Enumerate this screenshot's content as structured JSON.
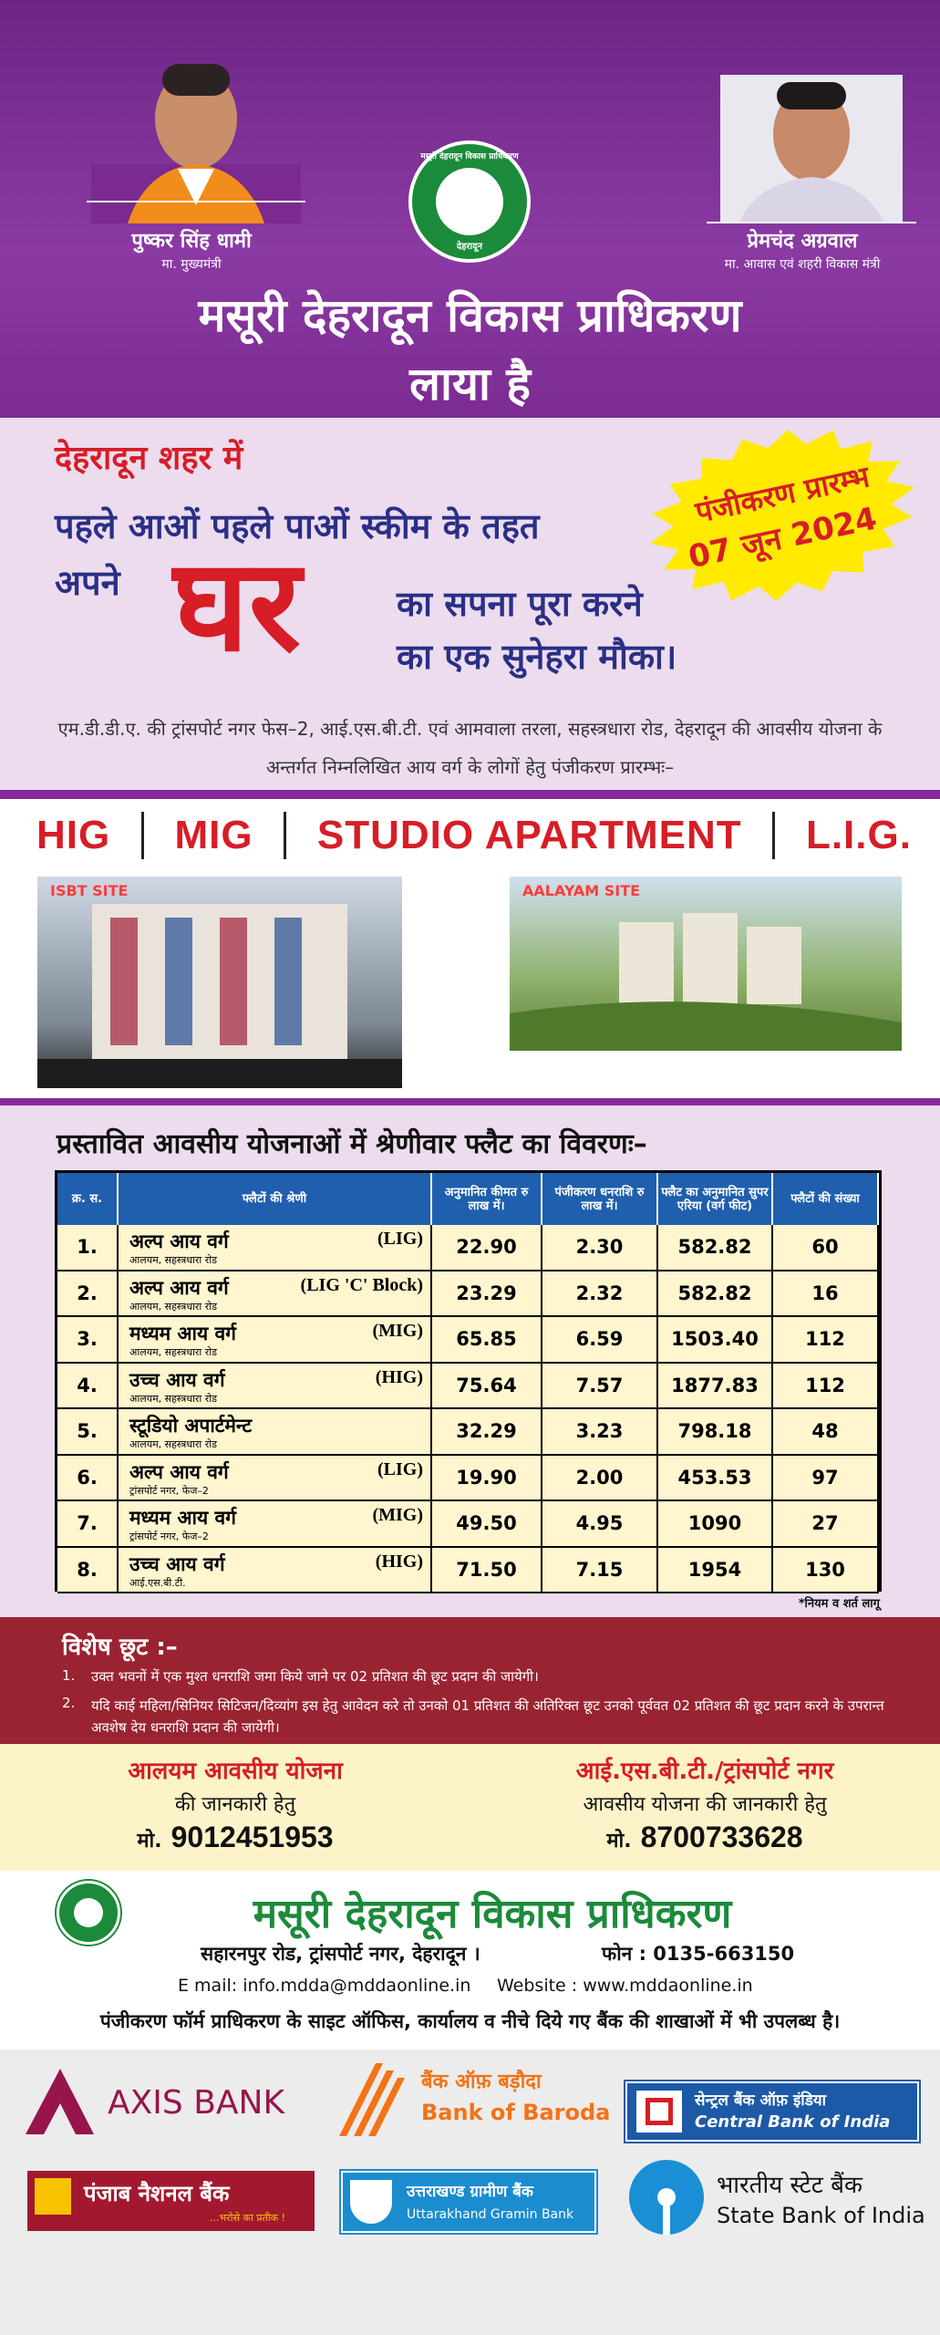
{
  "header": {
    "leaders": [
      {
        "name": "पुष्कर सिंह धामी",
        "role": "मा. मुख्यमंत्री"
      },
      {
        "name": "प्रेमचंद अग्रवाल",
        "role": "मा. आवास एवं शहरी विकास मंत्री"
      }
    ],
    "logo": {
      "top": "मसूरी देहरादून विकास प्राधिकरण",
      "bottom": "देहरादून"
    },
    "title_lines": [
      "मसूरी देहरादून विकास प्राधिकरण",
      "लाया है"
    ]
  },
  "offer": {
    "city": "देहरादून शहर में",
    "scheme": "पहले आओं पहले पाओं स्कीम के तहत",
    "prefix": "अपने",
    "highlight": "घर",
    "tail_lines": [
      "का सपना पूरा करने",
      "का एक सुनेहरा मौका।"
    ],
    "registration": [
      "पंजीकरण प्रारम्भ",
      "07 जून 2024"
    ],
    "description": "एम.डी.डी.ए. की ट्रांसपोर्ट नगर फेस–2, आई.एस.बी.टी. एवं आमवाला तरला, सहस्त्रधारा रोड, देहरादून की आवसीय योजना के अन्तर्गत निम्नलिखित आय वर्ग के लोगों हेतु पंजीकरण प्रारम्भः–"
  },
  "categories": {
    "items": [
      "HIG",
      "MIG",
      "STUDIO APARTMENT",
      "L.I.G."
    ],
    "sites": [
      "ISBT SITE",
      "AALAYAM SITE"
    ]
  },
  "table": {
    "heading": "प्रस्तावित आवसीय योजनाओं में श्रेणीवार फ्लैट का विवरणः–",
    "columns": [
      "क्र. स.",
      "फ्लैटों की श्रेणी",
      "अनुमानित कीमत रु लाख में।",
      "पंजीकरण धनराशि रु लाख में।",
      "फ्लैट का अनुमानित सुपर एरिया (वर्ग फीट)",
      "फ्लैटों की संख्या"
    ],
    "rows": [
      {
        "no": "1.",
        "name": "अल्प आय वर्ग",
        "code": "(LIG)",
        "location": "आलयम, सहस्त्रधारा रोड",
        "price": "22.90",
        "deposit": "2.30",
        "area": "582.82",
        "count": "60"
      },
      {
        "no": "2.",
        "name": "अल्प आय वर्ग",
        "code": "(LIG 'C' Block)",
        "location": "आलयम, सहस्त्रधारा रोड",
        "price": "23.29",
        "deposit": "2.32",
        "area": "582.82",
        "count": "16"
      },
      {
        "no": "3.",
        "name": "मध्यम आय वर्ग",
        "code": "(MIG)",
        "location": "आलयम, सहस्त्रधारा रोड",
        "price": "65.85",
        "deposit": "6.59",
        "area": "1503.40",
        "count": "112"
      },
      {
        "no": "4.",
        "name": "उच्च आय वर्ग",
        "code": "(HIG)",
        "location": "आलयम, सहस्त्रधारा रोड",
        "price": "75.64",
        "deposit": "7.57",
        "area": "1877.83",
        "count": "112"
      },
      {
        "no": "5.",
        "name": "स्टूडियो अपार्टमेन्ट",
        "location": "आलयम, सहस्त्रधारा रोड",
        "price": "32.29",
        "deposit": "3.23",
        "area": "798.18",
        "count": "48"
      },
      {
        "no": "6.",
        "name": "अल्प आय वर्ग",
        "code": "(LIG)",
        "location": "ट्रांसपोर्ट नगर, फेज–2",
        "price": "19.90",
        "deposit": "2.00",
        "area": "453.53",
        "count": "97"
      },
      {
        "no": "7.",
        "name": "मध्यम आय वर्ग",
        "code": "(MIG)",
        "location": "ट्रांसपोर्ट नगर, फेज–2",
        "price": "49.50",
        "deposit": "4.95",
        "area": "1090",
        "count": "27"
      },
      {
        "no": "8.",
        "name": "उच्च आय वर्ग",
        "code": "(HIG)",
        "location": "आई.एस.बी.टी.",
        "price": "71.50",
        "deposit": "7.15",
        "area": "1954",
        "count": "130"
      }
    ],
    "note": "*नियम व शर्त लागू"
  },
  "discount": {
    "title": "विशेष छूट :–",
    "items": [
      {
        "no": "1.",
        "text": "उक्त भवनों में एक मुश्त धनराशि जमा किये जाने पर 02 प्रतिशत की छूट प्रदान की जायेगी।"
      },
      {
        "no": "2.",
        "text": "यदि काई महिला/सिनियर सिटिजन/दिव्यांग इस हेतु आवेदन करे तो उनको 01 प्रतिशत की अतिरिक्त छूट उनको पूर्ववत 02 प्रतिशत की छूट प्रदान करने के उपरान्त अवशेष देय धनराशि प्रदान की जायेगी।"
      }
    ]
  },
  "contacts": [
    {
      "scheme": "आलयम आवसीय योजना",
      "info": "की जानकारी हेतु",
      "prefix": "मो.",
      "phone": "9012451953"
    },
    {
      "scheme": "आई.एस.बी.टी./ट्रांसपोर्ट नगर",
      "info": "आवसीय योजना की जानकारी हेतु",
      "prefix": "मो.",
      "phone": "8700733628"
    }
  ],
  "authority": {
    "name": "मसूरी देहरादून विकास प्राधिकरण",
    "address": "सहारनपुर रोड, ट्रांसपोर्ट नगर, देहरादून ।",
    "phone": "फोन : 0135-663150",
    "email": "E mail: info.mdda@mddaonline.in",
    "website": "Website : www.mddaonline.in",
    "availability": "पंजीकरण फॉर्म प्राधिकरण के साइट ऑफिस, कार्यालय व नीचे दिये गए बैंक की शाखाओं में भी उपलब्ध है।"
  },
  "banks": [
    {
      "name": "AXIS BANK"
    },
    {
      "hindi": "बैंक ऑफ़ बड़ौदा",
      "name": "Bank of Baroda"
    },
    {
      "hindi": "सेन्ट्रल बैंक ऑफ़ इंडिया",
      "name": "Central Bank of India"
    },
    {
      "hindi": "पंजाब नैशनल बैंक",
      "tagline": "...भरोसे का प्रतीक !"
    },
    {
      "hindi": "उत्तराखण्ड ग्रामीण बैंक",
      "name": "Uttarakhand Gramin Bank"
    },
    {
      "hindi": "भारतीय स्टेट बैंक",
      "name": "State Bank of India"
    }
  ]
}
